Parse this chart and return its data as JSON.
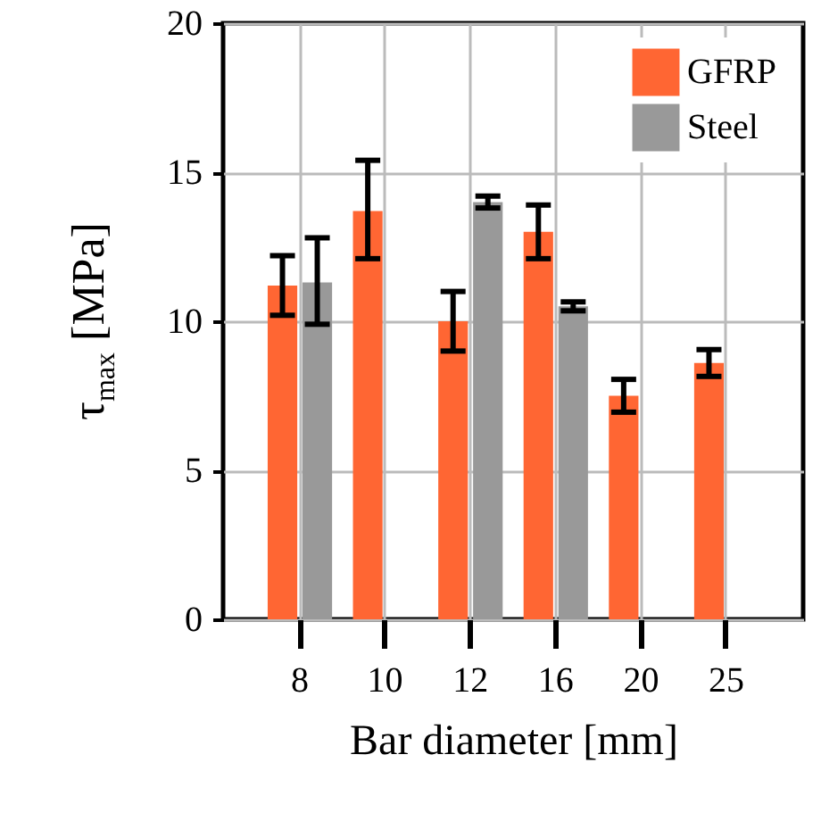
{
  "chart_data": {
    "type": "bar",
    "xlabel": "Bar diameter [mm]",
    "ylabel": "τ$_{max}$ [MPa]",
    "categories": [
      "8",
      "10",
      "12",
      "16",
      "20",
      "25"
    ],
    "series": [
      {
        "name": "GFRP",
        "color": "#ff6633",
        "values": [
          11.2,
          13.7,
          10.0,
          13.0,
          7.5,
          8.6
        ],
        "errors": [
          1.0,
          [
            12.1,
            15.4
          ],
          1.0,
          0.9,
          0.55,
          0.45
        ]
      },
      {
        "name": "Steel",
        "color": "#999999",
        "values": [
          11.3,
          null,
          14.0,
          10.5,
          null,
          null
        ],
        "errors": [
          [
            9.9,
            12.8
          ],
          null,
          0.2,
          0.15,
          null,
          null
        ]
      }
    ],
    "ylim": [
      0,
      20
    ],
    "yticks": [
      0,
      5,
      10,
      15,
      20
    ],
    "grid": true,
    "legend": "top right"
  }
}
